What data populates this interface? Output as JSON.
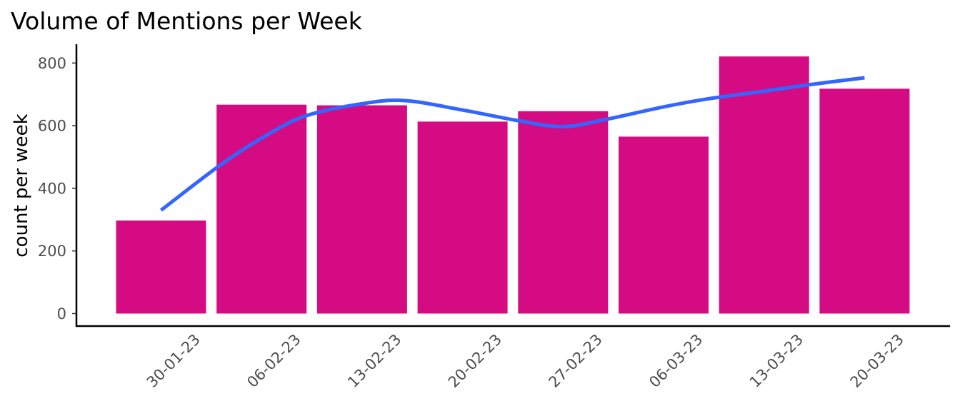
{
  "chart_data": {
    "type": "bar",
    "title": "Volume of Mentions per Week",
    "xlabel": "",
    "ylabel": "count per week",
    "categories": [
      "30-01-23",
      "06-02-23",
      "13-02-23",
      "20-02-23",
      "27-02-23",
      "06-03-23",
      "13-03-23",
      "20-03-23"
    ],
    "values": [
      297,
      667,
      665,
      613,
      646,
      565,
      821,
      718
    ],
    "ylim": [
      -40,
      860
    ],
    "yticks": [
      0,
      200,
      400,
      600,
      800
    ],
    "ytick_labels": [
      "0",
      "200",
      "400",
      "600",
      "800"
    ],
    "grid": false,
    "legend": "none",
    "bar_color": "#d50b83",
    "trend": {
      "type": "smooth",
      "color": "#3366ff",
      "x_start": "30-01-23",
      "x_end": "20-03-23",
      "points": [
        {
          "x": "30-01-23",
          "y": 330
        },
        {
          "x": "03-02-23",
          "y": 470
        },
        {
          "x": "06-02-23",
          "y": 560
        },
        {
          "x": "09-02-23",
          "y": 630
        },
        {
          "x": "13-02-23",
          "y": 670
        },
        {
          "x": "16-02-23",
          "y": 680
        },
        {
          "x": "20-02-23",
          "y": 650
        },
        {
          "x": "24-02-23",
          "y": 615
        },
        {
          "x": "27-02-23",
          "y": 597
        },
        {
          "x": "02-03-23",
          "y": 620
        },
        {
          "x": "06-03-23",
          "y": 660
        },
        {
          "x": "09-03-23",
          "y": 685
        },
        {
          "x": "13-03-23",
          "y": 710
        },
        {
          "x": "16-03-23",
          "y": 730
        },
        {
          "x": "20-03-23",
          "y": 753
        }
      ]
    }
  }
}
